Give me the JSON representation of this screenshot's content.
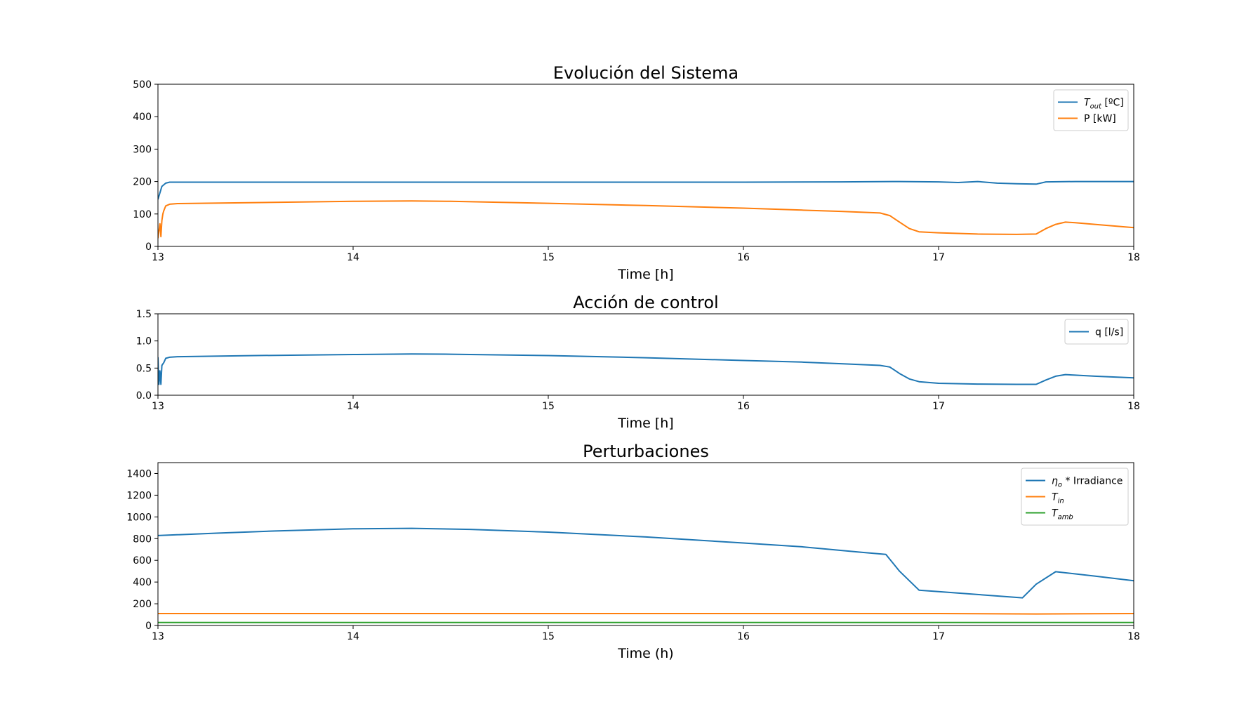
{
  "chart_data": [
    {
      "type": "line",
      "title": "Evolución del Sistema",
      "xlabel": "Time [h]",
      "ylabel": "",
      "xlim": [
        13,
        18
      ],
      "ylim": [
        0,
        500
      ],
      "xticks": [
        13,
        14,
        15,
        16,
        17,
        18
      ],
      "yticks": [
        0,
        100,
        200,
        300,
        400,
        500
      ],
      "legend_position": "top-right",
      "series": [
        {
          "name": "T_out [ºC]",
          "legend": {
            "main": "T",
            "sub": "out",
            "tail": " [ºC]"
          },
          "color": "#1f77b4",
          "x": [
            13.0,
            13.02,
            13.04,
            13.06,
            13.3,
            14.0,
            14.3,
            15.0,
            15.5,
            16.0,
            16.5,
            16.8,
            17.0,
            17.1,
            17.2,
            17.3,
            17.4,
            17.5,
            17.55,
            17.7,
            18.0
          ],
          "y": [
            145,
            185,
            195,
            198,
            198,
            198,
            198,
            198,
            198,
            198,
            199,
            200,
            199,
            197,
            200,
            195,
            193,
            192,
            199,
            200,
            200
          ]
        },
        {
          "name": "P [kW]",
          "legend": {
            "main": "P [kW]",
            "sub": "",
            "tail": ""
          },
          "color": "#ff7f0e",
          "x": [
            13.0,
            13.01,
            13.015,
            13.02,
            13.025,
            13.03,
            13.04,
            13.06,
            13.1,
            13.5,
            14.0,
            14.3,
            14.5,
            15.0,
            15.5,
            16.0,
            16.3,
            16.5,
            16.7,
            16.75,
            16.8,
            16.85,
            16.9,
            17.0,
            17.2,
            17.4,
            17.5,
            17.55,
            17.6,
            17.65,
            17.7,
            17.8,
            18.0
          ],
          "y": [
            25,
            70,
            30,
            80,
            100,
            110,
            125,
            130,
            132,
            135,
            139,
            140,
            139,
            133,
            126,
            118,
            112,
            108,
            103,
            95,
            75,
            55,
            45,
            42,
            38,
            37,
            38,
            55,
            68,
            75,
            73,
            68,
            58
          ]
        }
      ]
    },
    {
      "type": "line",
      "title": "Acción de control",
      "xlabel": "Time [h]",
      "ylabel": "",
      "xlim": [
        13,
        18
      ],
      "ylim": [
        0,
        1.5
      ],
      "xticks": [
        13,
        14,
        15,
        16,
        17,
        18
      ],
      "yticks": [
        0.0,
        0.5,
        1.0,
        1.5
      ],
      "legend_position": "top-right",
      "series": [
        {
          "name": "q [l/s]",
          "legend": {
            "main": "q [l/s]",
            "sub": "",
            "tail": ""
          },
          "color": "#1f77b4",
          "x": [
            13.0,
            13.005,
            13.01,
            13.015,
            13.02,
            13.03,
            13.04,
            13.06,
            13.1,
            13.5,
            14.0,
            14.3,
            14.5,
            15.0,
            15.5,
            16.0,
            16.3,
            16.5,
            16.7,
            16.75,
            16.8,
            16.85,
            16.9,
            17.0,
            17.2,
            17.4,
            17.5,
            17.55,
            17.6,
            17.65,
            17.7,
            17.8,
            18.0
          ],
          "y": [
            0.7,
            0.2,
            0.45,
            0.2,
            0.55,
            0.6,
            0.68,
            0.7,
            0.71,
            0.73,
            0.75,
            0.76,
            0.755,
            0.73,
            0.69,
            0.64,
            0.61,
            0.58,
            0.55,
            0.52,
            0.4,
            0.3,
            0.25,
            0.22,
            0.205,
            0.2,
            0.2,
            0.28,
            0.35,
            0.38,
            0.37,
            0.35,
            0.32
          ]
        }
      ]
    },
    {
      "type": "line",
      "title": "Perturbaciones",
      "xlabel": "Time (h)",
      "ylabel": "",
      "xlim": [
        13,
        18
      ],
      "ylim": [
        0,
        1500
      ],
      "xticks": [
        13,
        14,
        15,
        16,
        17,
        18
      ],
      "yticks": [
        0,
        200,
        400,
        600,
        800,
        1000,
        1200,
        1400
      ],
      "legend_position": "top-right",
      "series": [
        {
          "name": "η_o * Irradiance",
          "legend": {
            "main": "η",
            "sub": "o",
            "tail": " * Irradiance"
          },
          "color": "#1f77b4",
          "x": [
            13.0,
            13.3,
            13.6,
            14.0,
            14.3,
            14.6,
            15.0,
            15.5,
            16.0,
            16.3,
            16.6,
            16.73,
            16.8,
            16.9,
            17.0,
            17.2,
            17.43,
            17.5,
            17.6,
            17.8,
            18.0
          ],
          "y": [
            828,
            850,
            870,
            890,
            895,
            885,
            860,
            815,
            760,
            725,
            675,
            655,
            500,
            325,
            312,
            285,
            255,
            380,
            495,
            455,
            412
          ]
        },
        {
          "name": "T_in",
          "legend": {
            "main": "T",
            "sub": "in",
            "tail": ""
          },
          "color": "#ff7f0e",
          "x": [
            13.0,
            14.0,
            15.0,
            16.0,
            17.0,
            17.5,
            18.0
          ],
          "y": [
            110,
            110,
            110,
            110,
            110,
            106,
            110
          ]
        },
        {
          "name": "T_amb",
          "legend": {
            "main": "T",
            "sub": "amb",
            "tail": ""
          },
          "color": "#2ca02c",
          "x": [
            13.0,
            14.0,
            15.0,
            16.0,
            17.0,
            18.0
          ],
          "y": [
            28,
            28,
            28,
            28,
            28,
            28
          ]
        }
      ]
    }
  ]
}
